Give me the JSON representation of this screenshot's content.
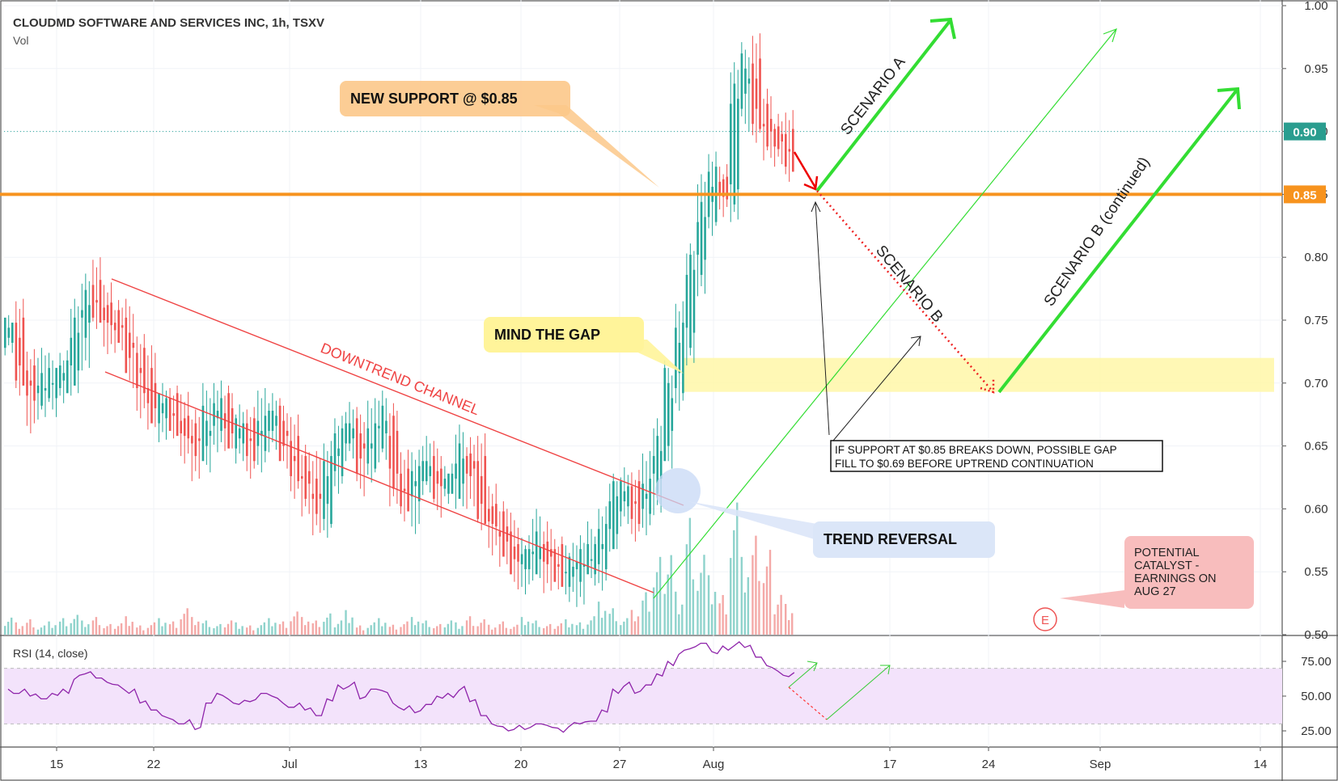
{
  "header": {
    "title": "CLOUDMD SOFTWARE AND SERVICES INC, 1h, TSXV",
    "indicator": "Vol"
  },
  "rsi": {
    "title": "RSI (14, close)",
    "ticks": [
      "75.00",
      "50.00",
      "25.00"
    ]
  },
  "price_axis": {
    "ticks": [
      "1.00",
      "0.95",
      "0.90",
      "0.85",
      "0.80",
      "0.75",
      "0.70",
      "0.65",
      "0.60",
      "0.55",
      "0.50"
    ],
    "badges": [
      "0.90",
      "0.85"
    ]
  },
  "time_axis": {
    "labels": [
      "15",
      "22",
      "Jul",
      "13",
      "20",
      "27",
      "Aug",
      "17",
      "24",
      "Sep",
      "14"
    ]
  },
  "annotations": {
    "new_support": "NEW SUPPORT @ $0.85",
    "mind_the_gap": "MIND THE GAP",
    "trend_reversal": "TREND REVERSAL",
    "downtrend_channel": "DOWNTREND CHANNEL",
    "scenario_a": "SCENARIO A",
    "scenario_b": "SCENARIO B",
    "scenario_b_continued": "SCENARIO B (continued)",
    "gap_note_line1": "IF SUPPORT AT $0.85 BREAKS DOWN, POSSIBLE GAP",
    "gap_note_line2": "FILL TO $0.69 BEFORE UPTREND CONTINUATION",
    "catalyst_lines": [
      "POTENTIAL",
      "CATALYST -",
      "EARNINGS ON",
      "AUG 27"
    ],
    "earnings_marker": "E"
  },
  "colors": {
    "up": "#26a69a",
    "down": "#ef5350",
    "support_line": "#f7931e",
    "arrow_green": "#33dd33",
    "channel_red": "#ef4444",
    "gap_zone": "#fff7a8",
    "rsi_band": "#f3e3fb",
    "rsi_line": "#8e24aa"
  },
  "chart_data": {
    "type": "line",
    "title": "CLOUDMD SOFTWARE AND SERVICES INC, 1h, TSXV",
    "series": [
      {
        "values": [
          0.74,
          0.71,
          0.69,
          0.7,
          0.7,
          0.71,
          0.74,
          0.77,
          0.76,
          0.75,
          0.74,
          0.72,
          0.7,
          0.68,
          0.68,
          0.67,
          0.66,
          0.65,
          0.67,
          0.68,
          0.66,
          0.66,
          0.65,
          0.67,
          0.67,
          0.65,
          0.63,
          0.62,
          0.6,
          0.63,
          0.66,
          0.66,
          0.64,
          0.66,
          0.67,
          0.62,
          0.61,
          0.63,
          0.63,
          0.62,
          0.62,
          0.64,
          0.63,
          0.6,
          0.59,
          0.57,
          0.56,
          0.56,
          0.57,
          0.56,
          0.55,
          0.55,
          0.56,
          0.56,
          0.58,
          0.61,
          0.61,
          0.6,
          0.62,
          0.65,
          0.7,
          0.74,
          0.79,
          0.84,
          0.86,
          0.85,
          0.93,
          0.95,
          0.91,
          0.9,
          0.89,
          0.88
        ]
      }
    ],
    "x_range": [
      "Jun 10",
      "Aug 6"
    ],
    "ylim": [
      0.5,
      1.0
    ],
    "support_level": 0.85,
    "current_level": 0.9,
    "gap_zone": [
      0.693,
      0.72
    ],
    "scenario_b_target": 0.69,
    "rsi": {
      "ylim": [
        10,
        95
      ],
      "overbought": 70,
      "oversold": 30,
      "values": [
        55,
        52,
        50,
        48,
        52,
        55,
        62,
        66,
        63,
        60,
        58,
        52,
        45,
        40,
        36,
        33,
        30,
        26,
        45,
        52,
        48,
        44,
        46,
        52,
        50,
        45,
        42,
        40,
        36,
        48,
        58,
        57,
        48,
        55,
        54,
        45,
        40,
        38,
        44,
        50,
        52,
        54,
        46,
        36,
        30,
        28,
        26,
        26,
        30,
        29,
        27,
        28,
        30,
        32,
        40,
        55,
        57,
        52,
        58,
        66,
        75,
        80,
        84,
        88,
        82,
        86,
        86,
        85,
        78,
        72,
        68,
        64
      ]
    },
    "volume": [
      6,
      4,
      5,
      3,
      4,
      5,
      6,
      4,
      5,
      3,
      4,
      6,
      3,
      4,
      5,
      4,
      8,
      5,
      4,
      3,
      5,
      4,
      3,
      4,
      5,
      4,
      7,
      5,
      4,
      6,
      5,
      8,
      3,
      4,
      5,
      3,
      4,
      5,
      4,
      3,
      5,
      4,
      6,
      5,
      3,
      4,
      3,
      5,
      4,
      3,
      4,
      5,
      4,
      6,
      10,
      8,
      5,
      7,
      12,
      22,
      28,
      14,
      38,
      26,
      18,
      12,
      40,
      22,
      28,
      24,
      14,
      10
    ]
  }
}
